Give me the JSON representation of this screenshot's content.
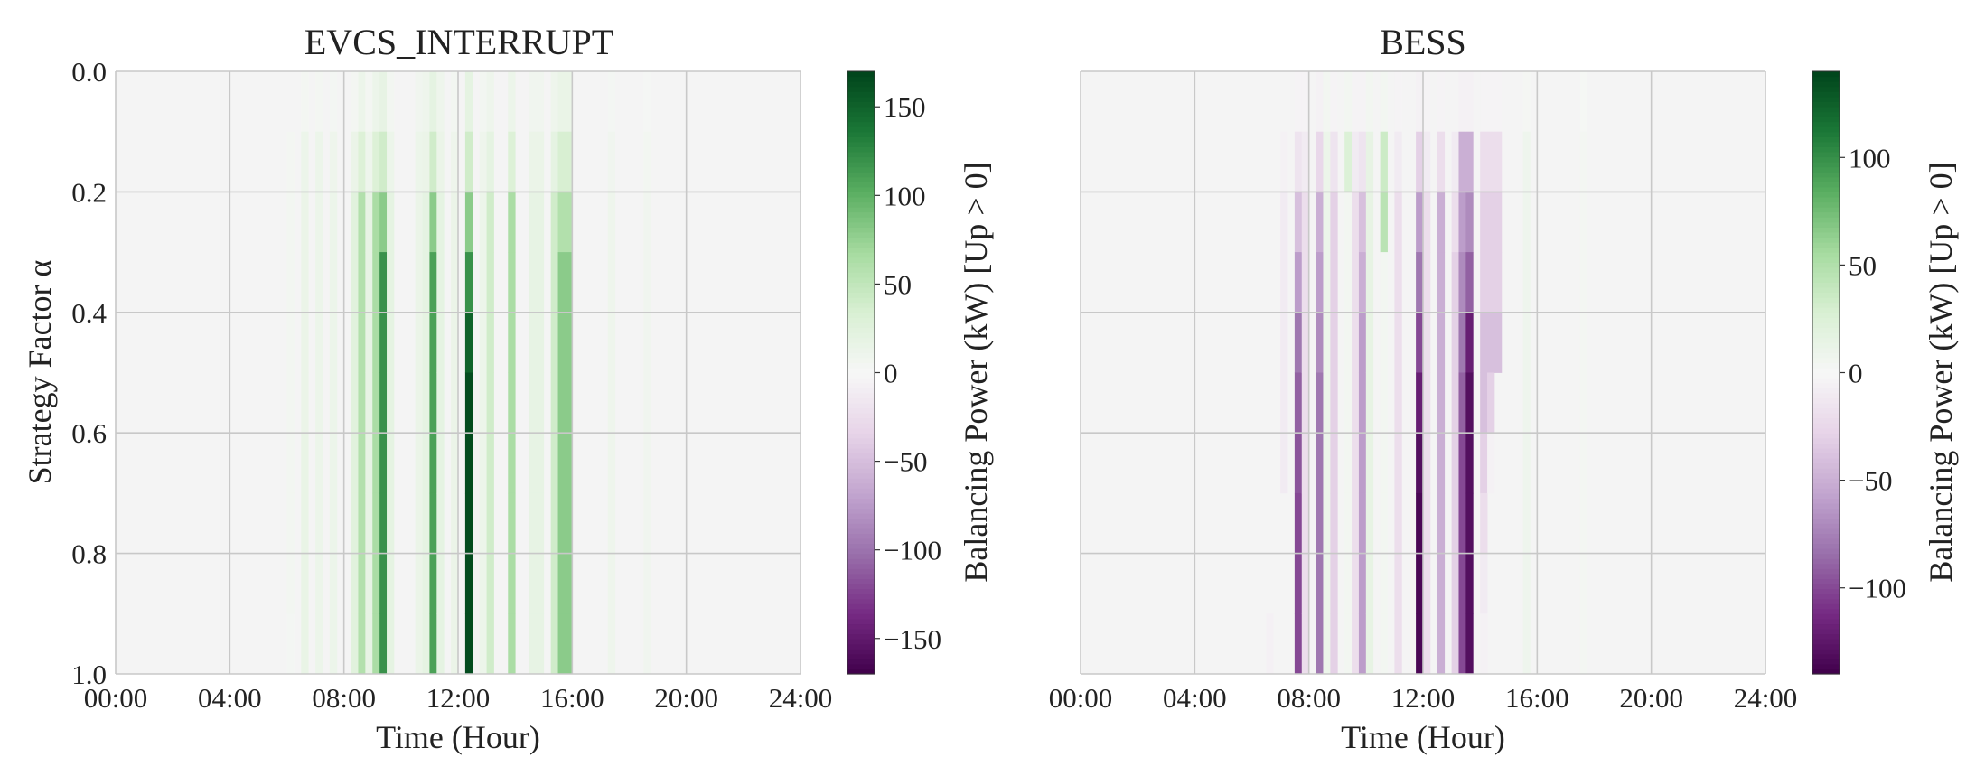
{
  "colors": {
    "plot_background": "#f4f4f4",
    "grid": "#c8c8c8"
  },
  "colormap": {
    "name": "PRGn",
    "stops": [
      "#40004b",
      "#762a83",
      "#9970ab",
      "#c2a5cf",
      "#e7d4e8",
      "#f7f7f7",
      "#d9f0d3",
      "#a6dba0",
      "#5aae61",
      "#1b7837",
      "#00441b"
    ]
  },
  "chart_data": [
    {
      "type": "heatmap",
      "title": "EVCS_INTERRUPT",
      "xlabel": "Time (Hour)",
      "ylabel": "Strategy Factor α",
      "xlim": [
        0,
        24
      ],
      "ylim": [
        1.0,
        0.0
      ],
      "x_ticks": [
        "00:00",
        "04:00",
        "08:00",
        "12:00",
        "16:00",
        "20:00",
        "24:00"
      ],
      "y_ticks": [
        "0.0",
        "0.2",
        "0.4",
        "0.6",
        "0.8",
        "1.0"
      ],
      "grid": true,
      "colorbar": {
        "label": "Balancing Power (kW) [Up > 0]",
        "vmin": -170,
        "vmax": 170,
        "ticks": [
          "150",
          "100",
          "50",
          "0",
          "−50",
          "−100",
          "−150"
        ],
        "tick_values": [
          150,
          100,
          50,
          0,
          -50,
          -100,
          -150
        ]
      },
      "bin_hours": 0.25,
      "alpha_bands": [
        0.0,
        0.1,
        0.2,
        0.3,
        0.4,
        0.5,
        0.6,
        0.7,
        0.8,
        0.9,
        1.0
      ],
      "columns": [
        {
          "t": 6.0,
          "v": [
            0,
            5,
            6,
            6,
            6,
            6,
            6,
            6,
            6,
            4
          ]
        },
        {
          "t": 6.5,
          "v": [
            5,
            12,
            14,
            14,
            14,
            14,
            16,
            16,
            16,
            16
          ]
        },
        {
          "t": 7.0,
          "v": [
            5,
            12,
            12,
            12,
            12,
            12,
            12,
            12,
            12,
            12
          ]
        },
        {
          "t": 7.5,
          "v": [
            4,
            10,
            12,
            12,
            12,
            12,
            12,
            12,
            12,
            12
          ]
        },
        {
          "t": 8.25,
          "v": [
            5,
            14,
            25,
            25,
            25,
            25,
            25,
            25,
            25,
            25
          ]
        },
        {
          "t": 8.5,
          "v": [
            12,
            30,
            60,
            60,
            60,
            60,
            60,
            60,
            60,
            60
          ]
        },
        {
          "t": 8.75,
          "v": [
            5,
            10,
            18,
            18,
            18,
            18,
            18,
            18,
            18,
            18
          ]
        },
        {
          "t": 9.0,
          "v": [
            12,
            30,
            65,
            65,
            65,
            65,
            65,
            65,
            65,
            65
          ]
        },
        {
          "t": 9.25,
          "v": [
            18,
            40,
            80,
            120,
            120,
            120,
            120,
            120,
            120,
            120
          ]
        },
        {
          "t": 9.5,
          "v": [
            6,
            12,
            20,
            20,
            20,
            20,
            20,
            20,
            20,
            20
          ]
        },
        {
          "t": 10.5,
          "v": [
            8,
            12,
            14,
            14,
            14,
            14,
            14,
            14,
            14,
            14
          ]
        },
        {
          "t": 10.75,
          "v": [
            10,
            14,
            20,
            20,
            20,
            20,
            20,
            20,
            20,
            20
          ]
        },
        {
          "t": 11.0,
          "v": [
            20,
            40,
            80,
            110,
            110,
            110,
            110,
            110,
            110,
            110
          ]
        },
        {
          "t": 11.25,
          "v": [
            10,
            14,
            20,
            20,
            20,
            20,
            20,
            20,
            20,
            20
          ]
        },
        {
          "t": 11.75,
          "v": [
            6,
            10,
            14,
            14,
            14,
            14,
            14,
            14,
            14,
            14
          ]
        },
        {
          "t": 12.25,
          "v": [
            20,
            40,
            80,
            120,
            150,
            165,
            165,
            165,
            165,
            165
          ]
        },
        {
          "t": 12.75,
          "v": [
            6,
            10,
            12,
            12,
            12,
            12,
            12,
            12,
            12,
            12
          ]
        },
        {
          "t": 13.0,
          "v": [
            10,
            20,
            40,
            40,
            40,
            40,
            40,
            40,
            40,
            40
          ]
        },
        {
          "t": 13.75,
          "v": [
            12,
            30,
            65,
            65,
            65,
            65,
            65,
            65,
            65,
            65
          ]
        },
        {
          "t": 14.5,
          "v": [
            8,
            14,
            18,
            18,
            18,
            18,
            18,
            18,
            18,
            18
          ]
        },
        {
          "t": 14.75,
          "v": [
            8,
            14,
            18,
            18,
            18,
            18,
            18,
            18,
            18,
            18
          ]
        },
        {
          "t": 15.25,
          "v": [
            10,
            20,
            40,
            40,
            40,
            40,
            40,
            40,
            40,
            40
          ]
        },
        {
          "t": 15.5,
          "v": [
            15,
            35,
            60,
            80,
            80,
            80,
            80,
            80,
            80,
            80
          ]
        },
        {
          "t": 15.75,
          "v": [
            15,
            35,
            60,
            80,
            80,
            80,
            80,
            80,
            80,
            80
          ]
        },
        {
          "t": 17.25,
          "v": [
            4,
            8,
            10,
            10,
            10,
            10,
            10,
            10,
            10,
            10
          ]
        },
        {
          "t": 18.5,
          "v": [
            3,
            6,
            8,
            8,
            8,
            8,
            8,
            8,
            8,
            8
          ]
        }
      ]
    },
    {
      "type": "heatmap",
      "title": "BESS",
      "xlabel": "Time (Hour)",
      "ylabel": "",
      "xlim": [
        0,
        24
      ],
      "ylim": [
        1.0,
        0.0
      ],
      "x_ticks": [
        "00:00",
        "04:00",
        "08:00",
        "12:00",
        "16:00",
        "20:00",
        "24:00"
      ],
      "y_ticks": [],
      "grid": true,
      "colorbar": {
        "label": "Balancing Power (kW) [Up > 0]",
        "vmin": -140,
        "vmax": 140,
        "ticks": [
          "100",
          "50",
          "0",
          "−50",
          "−100"
        ],
        "tick_values": [
          100,
          50,
          0,
          -50,
          -100
        ]
      },
      "bin_hours": 0.25,
      "alpha_bands": [
        0.0,
        0.1,
        0.2,
        0.3,
        0.4,
        0.5,
        0.6,
        0.7,
        0.8,
        0.9,
        1.0
      ],
      "columns": [
        {
          "t": 6.5,
          "v": [
            0,
            0,
            0,
            0,
            0,
            0,
            0,
            0,
            0,
            -6
          ]
        },
        {
          "t": 7.0,
          "v": [
            0,
            -5,
            -10,
            -10,
            -10,
            -10,
            -10,
            0,
            0,
            0
          ]
        },
        {
          "t": 7.5,
          "v": [
            -3,
            -15,
            -40,
            -60,
            -80,
            -90,
            -95,
            -100,
            -100,
            -100
          ]
        },
        {
          "t": 7.75,
          "v": [
            -3,
            -10,
            -20,
            -20,
            -20,
            -20,
            -20,
            -20,
            -20,
            -20
          ]
        },
        {
          "t": 8.25,
          "v": [
            -5,
            -25,
            -50,
            -60,
            -70,
            -80,
            -80,
            -80,
            -80,
            -80
          ]
        },
        {
          "t": 8.5,
          "v": [
            5,
            10,
            10,
            10,
            10,
            10,
            10,
            10,
            10,
            10
          ]
        },
        {
          "t": 8.75,
          "v": [
            -3,
            -15,
            -30,
            -30,
            -30,
            -30,
            -30,
            -30,
            -30,
            -30
          ]
        },
        {
          "t": 9.25,
          "v": [
            5,
            25,
            5,
            5,
            5,
            5,
            5,
            5,
            5,
            5
          ]
        },
        {
          "t": 9.5,
          "v": [
            -3,
            -10,
            -20,
            -20,
            -20,
            -20,
            -20,
            -20,
            -20,
            -20
          ]
        },
        {
          "t": 9.75,
          "v": [
            -3,
            -15,
            -40,
            -50,
            -60,
            -60,
            -60,
            -60,
            -60,
            -60
          ]
        },
        {
          "t": 10.0,
          "v": [
            5,
            15,
            15,
            15,
            15,
            15,
            15,
            15,
            15,
            15
          ]
        },
        {
          "t": 10.5,
          "v": [
            5,
            35,
            45,
            5,
            5,
            5,
            5,
            5,
            5,
            5
          ]
        },
        {
          "t": 11.0,
          "v": [
            -3,
            -10,
            -20,
            -20,
            -20,
            -20,
            -20,
            -20,
            -20,
            -20
          ]
        },
        {
          "t": 11.75,
          "v": [
            -5,
            -30,
            -60,
            -80,
            -100,
            -120,
            -130,
            -135,
            -135,
            -135
          ]
        },
        {
          "t": 12.0,
          "v": [
            -3,
            -10,
            -20,
            -20,
            -20,
            -20,
            -20,
            -20,
            -20,
            -20
          ]
        },
        {
          "t": 12.5,
          "v": [
            -3,
            -20,
            -50,
            -50,
            -50,
            -50,
            -50,
            -50,
            -50,
            -50
          ]
        },
        {
          "t": 13.0,
          "v": [
            0,
            -10,
            -20,
            -30,
            -30,
            -30,
            -30,
            -30,
            -30,
            -30
          ]
        },
        {
          "t": 13.25,
          "v": [
            -5,
            -50,
            -60,
            -70,
            -80,
            -90,
            -100,
            -100,
            -100,
            -100
          ]
        },
        {
          "t": 13.5,
          "v": [
            -5,
            -50,
            -70,
            -90,
            -120,
            -130,
            -130,
            -130,
            -130,
            -130
          ]
        },
        {
          "t": 14.0,
          "v": [
            -3,
            -20,
            -30,
            -30,
            -40,
            -40,
            -30,
            -20,
            -10,
            -5
          ]
        },
        {
          "t": 14.25,
          "v": [
            -3,
            -20,
            -30,
            -30,
            -40,
            -30,
            -5,
            0,
            0,
            0
          ]
        },
        {
          "t": 14.5,
          "v": [
            -3,
            -20,
            -30,
            -30,
            -40,
            0,
            0,
            0,
            0,
            0
          ]
        },
        {
          "t": 15.5,
          "v": [
            3,
            8,
            8,
            8,
            8,
            8,
            8,
            8,
            8,
            8
          ]
        },
        {
          "t": 17.5,
          "v": [
            2,
            4,
            4,
            4,
            4,
            4,
            4,
            4,
            4,
            4
          ]
        }
      ]
    }
  ]
}
